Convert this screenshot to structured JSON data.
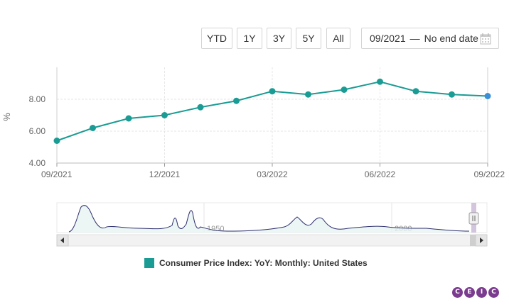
{
  "range_buttons": [
    {
      "label": "YTD"
    },
    {
      "label": "1Y"
    },
    {
      "label": "3Y"
    },
    {
      "label": "5Y"
    },
    {
      "label": "All"
    }
  ],
  "date_range": {
    "start": "09/2021",
    "separator": "—",
    "end": "No end date"
  },
  "y_unit": "%",
  "navigator": {
    "labels": [
      "1950",
      "2000"
    ]
  },
  "logo": {
    "letters": [
      "C",
      "E",
      "I",
      "C"
    ]
  },
  "colors": {
    "series": "#1a9c94",
    "last_point": "#3a8fd6",
    "navigator_line": "#2e2e6e",
    "logo": "#7b3b8f"
  },
  "chart_data": {
    "type": "line",
    "x": [
      "09/2021",
      "10/2021",
      "11/2021",
      "12/2021",
      "01/2022",
      "02/2022",
      "03/2022",
      "04/2022",
      "05/2022",
      "06/2022",
      "07/2022",
      "08/2022",
      "09/2022"
    ],
    "series": [
      {
        "name": "Consumer Price Index: YoY: Monthly: United States",
        "values": [
          5.4,
          6.2,
          6.8,
          7.0,
          7.5,
          7.9,
          8.5,
          8.3,
          8.6,
          9.1,
          8.5,
          8.3,
          8.2
        ]
      }
    ],
    "x_tick_labels": [
      "09/2021",
      "12/2021",
      "03/2022",
      "06/2022",
      "09/2022"
    ],
    "y_tick_labels": [
      "4.00",
      "6.00",
      "8.00"
    ],
    "ylabel": "%",
    "ylim": [
      4.0,
      10.0
    ],
    "grid": true,
    "legend_position": "bottom"
  }
}
